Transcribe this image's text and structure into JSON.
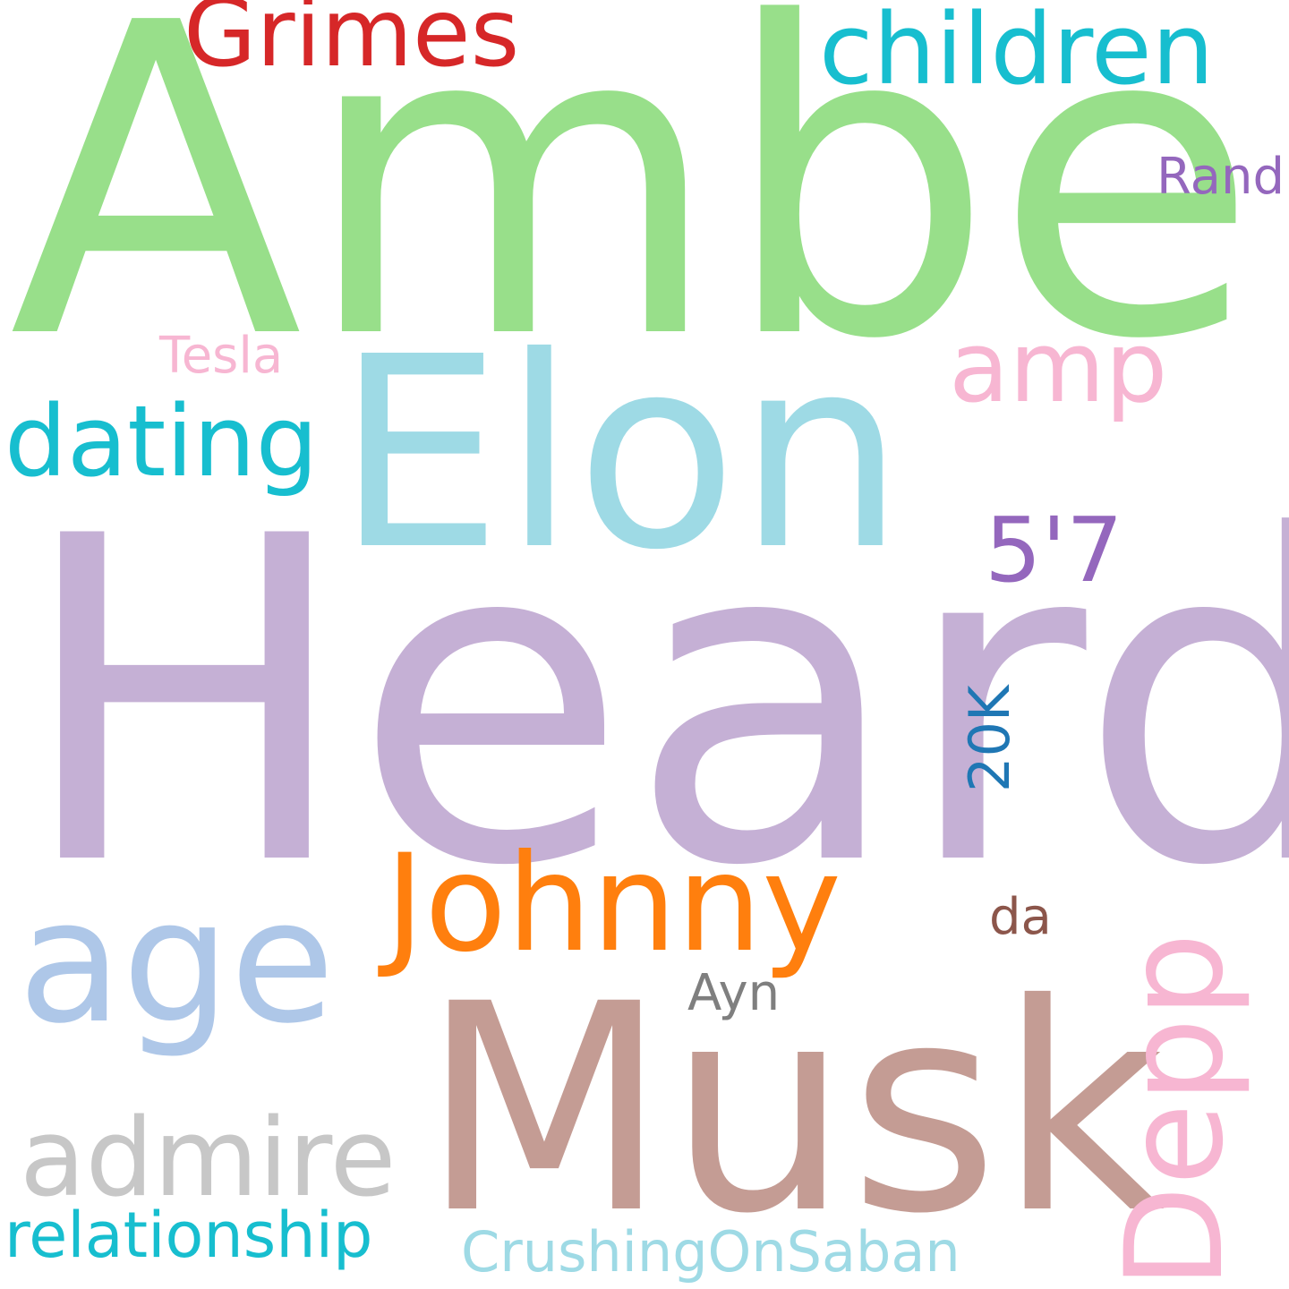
{
  "background": "#ffffff",
  "words": {
    "heard": {
      "text": "Heard",
      "color": "#c5b0d5"
    },
    "amber": {
      "text": "Amber",
      "color": "#98df8a"
    },
    "musk": {
      "text": "Musk",
      "color": "#c49c94"
    },
    "elon": {
      "text": "Elon",
      "color": "#9edae5"
    },
    "johnny": {
      "text": "Johnny",
      "color": "#ff7f0e"
    },
    "age": {
      "text": "age",
      "color": "#aec7e8"
    },
    "depp": {
      "text": "Depp",
      "color": "#f7b6d2"
    },
    "admire": {
      "text": "admire",
      "color": "#c7c7c7"
    },
    "children": {
      "text": "children",
      "color": "#17becf"
    },
    "grimes": {
      "text": "Grimes",
      "color": "#d62728"
    },
    "dating": {
      "text": "dating",
      "color": "#17becf"
    },
    "amp": {
      "text": "amp",
      "color": "#f7b6d2"
    },
    "five_seven": {
      "text": "5'7",
      "color": "#9467bd"
    },
    "relationship": {
      "text": "relationship",
      "color": "#17becf"
    },
    "crushing": {
      "text": "CrushingOnSaban",
      "color": "#9edae5"
    },
    "twenty_k": {
      "text": "20K",
      "color": "#1f77b4"
    },
    "tesla": {
      "text": "Tesla",
      "color": "#f7b6d2"
    },
    "rand": {
      "text": "Rand",
      "color": "#9467bd"
    },
    "ayn": {
      "text": "Ayn",
      "color": "#7f7f7f"
    },
    "da": {
      "text": "da",
      "color": "#8c564b"
    }
  }
}
